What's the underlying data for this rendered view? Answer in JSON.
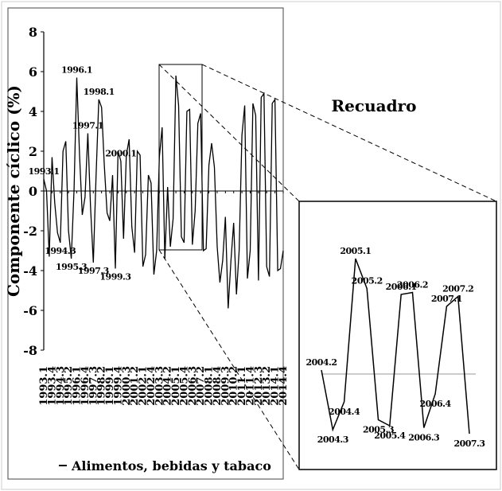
{
  "chart_data": {
    "type": "line",
    "ylabel": "Componente cíclico (%)",
    "legend": "Alimentos, bebidas y tabaco",
    "inset_title": "Recuadro",
    "ylim": [
      -8,
      8
    ],
    "yticks": [
      8,
      6,
      4,
      2,
      0,
      -2,
      -4,
      -6,
      -8
    ],
    "xtick_labels": [
      "1993.1",
      "1993.4",
      "1994.3",
      "1995.2",
      "1996.1",
      "1996.4",
      "1997.3",
      "1998.2",
      "1999.1",
      "1999.4",
      "2000.3",
      "2001.2",
      "2002.1",
      "2002.4",
      "2003.3",
      "2004.2",
      "2005.1",
      "2005.4",
      "2006.3",
      "2007.2",
      "2008.1",
      "2008.4",
      "2009.3",
      "2010.2",
      "2011.1",
      "2011.4",
      "2012.3",
      "2013.2",
      "2014.1",
      "2014.4"
    ],
    "x": [
      "1993.1",
      "1993.2",
      "1993.3",
      "1993.4",
      "1994.1",
      "1994.2",
      "1994.3",
      "1994.4",
      "1995.1",
      "1995.2",
      "1995.3",
      "1995.4",
      "1996.1",
      "1996.2",
      "1996.3",
      "1996.4",
      "1997.1",
      "1997.2",
      "1997.3",
      "1997.4",
      "1998.1",
      "1998.2",
      "1998.3",
      "1998.4",
      "1999.1",
      "1999.2",
      "1999.3",
      "1999.4",
      "2000.1",
      "2000.2",
      "2000.3",
      "2000.4",
      "2001.1",
      "2001.2",
      "2001.3",
      "2001.4",
      "2002.1",
      "2002.2",
      "2002.3",
      "2002.4",
      "2003.1",
      "2003.2",
      "2003.3",
      "2003.4",
      "2004.1",
      "2004.2",
      "2004.3",
      "2004.4",
      "2005.1",
      "2005.2",
      "2005.3",
      "2005.4",
      "2006.1",
      "2006.2",
      "2006.3",
      "2006.4",
      "2007.1",
      "2007.2",
      "2007.3",
      "2007.4",
      "2008.1",
      "2008.2",
      "2008.3",
      "2008.4",
      "2009.1",
      "2009.2",
      "2009.3",
      "2009.4",
      "2010.1",
      "2010.2",
      "2010.3",
      "2010.4",
      "2011.1",
      "2011.2",
      "2011.3",
      "2011.4",
      "2012.1",
      "2012.2",
      "2012.3",
      "2012.4",
      "2013.1",
      "2013.2",
      "2013.3",
      "2013.4",
      "2014.1",
      "2014.2",
      "2014.3",
      "2014.4"
    ],
    "series": [
      {
        "name": "Alimentos, bebidas y tabaco",
        "values": [
          0.6,
          0.0,
          -3.3,
          1.7,
          -0.6,
          -2.1,
          -2.6,
          2.0,
          2.5,
          -2.0,
          -3.4,
          0.1,
          5.7,
          1.8,
          -1.2,
          -0.3,
          2.9,
          -0.8,
          -3.6,
          0.7,
          4.6,
          4.2,
          1.3,
          -1.1,
          -1.5,
          0.8,
          -3.9,
          2.0,
          1.5,
          -2.4,
          1.8,
          2.6,
          -1.8,
          -3.1,
          2.0,
          1.8,
          -3.8,
          -3.2,
          0.8,
          0.4,
          -4.2,
          -3.0,
          1.7,
          3.2,
          -3.4,
          0.2,
          -2.8,
          -1.4,
          5.8,
          4.3,
          -2.3,
          -2.6,
          4.0,
          4.1,
          -2.7,
          -1.0,
          3.4,
          3.9,
          -3.0,
          -2.9,
          1.3,
          2.4,
          1.2,
          -2.8,
          -4.6,
          -3.5,
          -1.3,
          -5.9,
          -3.5,
          -1.6,
          -5.2,
          -3.0,
          2.8,
          4.3,
          -4.4,
          -3.0,
          4.4,
          3.8,
          -4.5,
          4.7,
          4.9,
          -3.8,
          -4.3,
          4.4,
          4.6,
          -4.0,
          -3.9,
          -3.0
        ]
      }
    ],
    "annotations": [
      "1993.1",
      "1994.3",
      "1995.3",
      "1996.1",
      "1997.1",
      "1997.3",
      "1998.1",
      "1999.3",
      "2000.1"
    ],
    "inset": {
      "x": [
        "2004.2",
        "2004.3",
        "2004.4",
        "2005.1",
        "2005.2",
        "2005.3",
        "2005.4",
        "2006.1",
        "2006.2",
        "2006.3",
        "2006.4",
        "2007.1",
        "2007.2",
        "2007.3"
      ],
      "values": [
        0.2,
        -2.8,
        -1.4,
        5.8,
        4.3,
        -2.3,
        -2.6,
        4.0,
        4.1,
        -2.7,
        -1.0,
        3.4,
        3.9,
        -3.0
      ],
      "labels": [
        "2004.2",
        "2004.3",
        "2004.4",
        "2005.1",
        "2005.2",
        "2005.3",
        "2005.4",
        "2006.1",
        "2006.2",
        "2006.3",
        "2006.4",
        "2007.1",
        "2007.2",
        "2007.3"
      ]
    }
  }
}
